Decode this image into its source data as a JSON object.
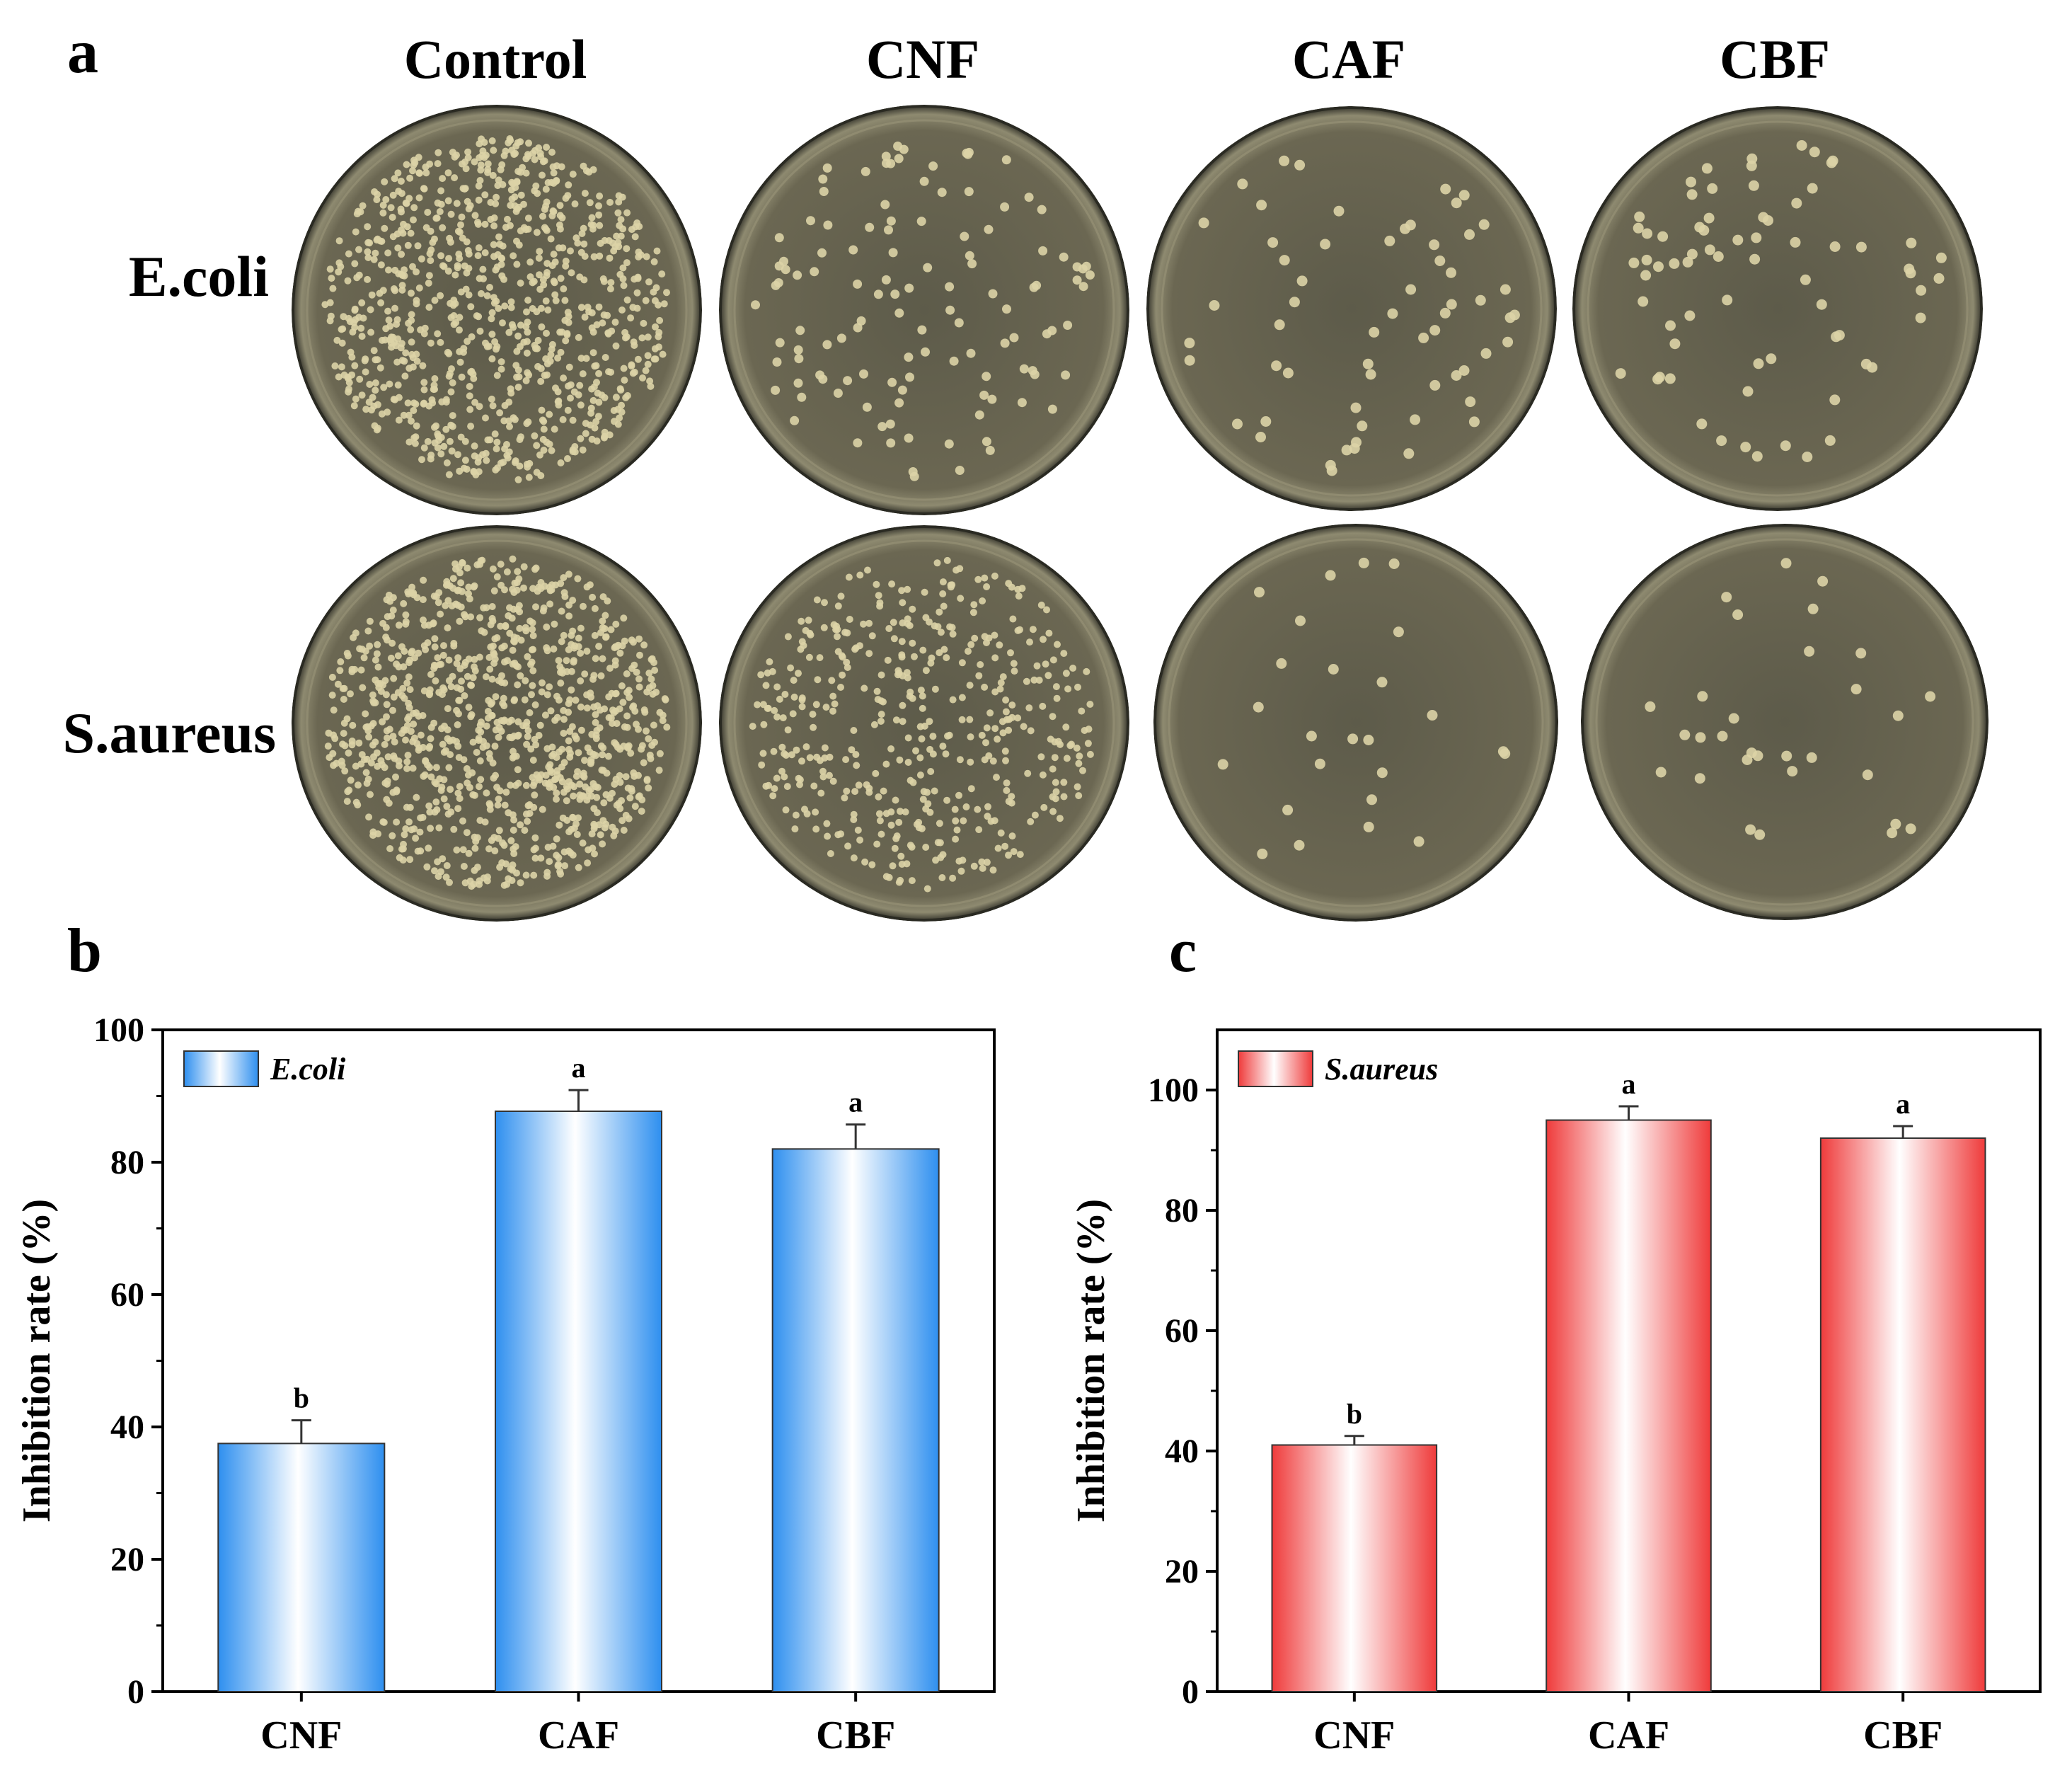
{
  "panel_a": {
    "letter": "a",
    "columns": [
      "Control",
      "CNF",
      "CAF",
      "CBF"
    ],
    "rows": [
      "E.coli",
      "S.aureus"
    ]
  },
  "panel_b": {
    "letter": "b"
  },
  "panel_c": {
    "letter": "c"
  },
  "colors": {
    "ecoli_bar": "#2e8fef",
    "saureus_bar": "#ef3b3b",
    "plate_medium": "#6e6a55",
    "colony": "#dcd3a6"
  },
  "chart_data": [
    {
      "type": "bar",
      "panel": "b",
      "categories": [
        "CNF",
        "CAF",
        "CBF"
      ],
      "series": [
        {
          "name": "E.coli",
          "values": [
            37.5,
            87.7,
            82.0
          ],
          "errors": [
            3.5,
            3.2,
            3.7
          ],
          "significance": [
            "b",
            "a",
            "a"
          ]
        }
      ],
      "ylabel": "Inhibition rate (%)",
      "ylim": [
        0,
        100
      ],
      "yticks": [
        0,
        20,
        40,
        60,
        80,
        100
      ],
      "legend_position": "top-left",
      "grid": false
    },
    {
      "type": "bar",
      "panel": "c",
      "categories": [
        "CNF",
        "CAF",
        "CBF"
      ],
      "series": [
        {
          "name": "S.aureus",
          "values": [
            41.0,
            95.0,
            92.0
          ],
          "errors": [
            1.5,
            2.3,
            2.0
          ],
          "significance": [
            "b",
            "a",
            "a"
          ]
        }
      ],
      "ylabel": "Inhibition rate (%)",
      "ylim": [
        0,
        110
      ],
      "yticks": [
        0,
        20,
        40,
        60,
        80,
        100
      ],
      "legend_position": "top-left",
      "grid": false
    }
  ]
}
